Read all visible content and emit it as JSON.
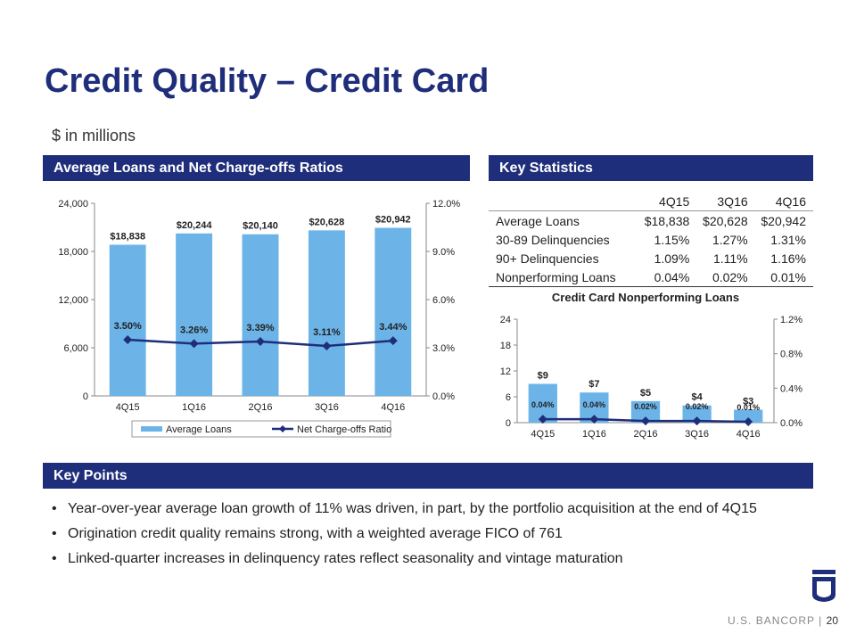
{
  "title": "Credit Quality – Credit Card",
  "subtitle": "$ in millions",
  "sections": {
    "left": "Average Loans and Net Charge-offs Ratios",
    "right": "Key Statistics",
    "points": "Key Points"
  },
  "stats": {
    "headers": [
      "4Q15",
      "3Q16",
      "4Q16"
    ],
    "rows": [
      {
        "label": "Average Loans",
        "values": [
          "$18,838",
          "$20,628",
          "$20,942"
        ]
      },
      {
        "label": "30-89 Delinquencies",
        "values": [
          "1.15%",
          "1.27%",
          "1.31%"
        ]
      },
      {
        "label": "90+ Delinquencies",
        "values": [
          "1.09%",
          "1.11%",
          "1.16%"
        ]
      },
      {
        "label": "Nonperforming Loans",
        "values": [
          "0.04%",
          "0.02%",
          "0.01%"
        ]
      }
    ]
  },
  "key_points": [
    "Year-over-year average loan growth of 11% was driven, in part, by the portfolio acquisition at the end of 4Q15",
    "Origination credit quality remains strong, with a weighted average FICO of 761",
    "Linked-quarter increases in delinquency rates reflect seasonality and vintage maturation"
  ],
  "footer": {
    "brand": "U.S. BANCORP",
    "separator": "|",
    "page": "20"
  },
  "colors": {
    "navy": "#1f2e7a",
    "bar": "#6cb4e8",
    "line": "#1f2e7a"
  },
  "chart_data": [
    {
      "type": "bar",
      "title": "",
      "categories": [
        "4Q15",
        "1Q16",
        "2Q16",
        "3Q16",
        "4Q16"
      ],
      "series": [
        {
          "name": "Average Loans",
          "kind": "bar",
          "axis": "left",
          "values": [
            18838,
            20244,
            20140,
            20628,
            20942
          ],
          "labels": [
            "$18,838",
            "$20,244",
            "$20,140",
            "$20,628",
            "$20,942"
          ]
        },
        {
          "name": "Net Charge-offs Ratio",
          "kind": "line",
          "axis": "right",
          "values": [
            3.5,
            3.26,
            3.39,
            3.11,
            3.44
          ],
          "labels": [
            "3.50%",
            "3.26%",
            "3.39%",
            "3.11%",
            "3.44%"
          ]
        }
      ],
      "left_axis": {
        "min": 0,
        "max": 24000,
        "ticks": [
          "0",
          "6,000",
          "12,000",
          "18,000",
          "24,000"
        ]
      },
      "right_axis": {
        "min": 0,
        "max": 12,
        "ticks": [
          "0.0%",
          "3.0%",
          "6.0%",
          "9.0%",
          "12.0%"
        ]
      },
      "legend": [
        "Average Loans",
        "Net Charge-offs Ratio"
      ],
      "legend_position": "bottom"
    },
    {
      "type": "bar",
      "title": "Credit Card Nonperforming Loans",
      "categories": [
        "4Q15",
        "1Q16",
        "2Q16",
        "3Q16",
        "4Q16"
      ],
      "series": [
        {
          "name": "Nonperforming Loans",
          "kind": "bar",
          "axis": "left",
          "values": [
            9,
            7,
            5,
            4,
            3
          ],
          "labels": [
            "$9",
            "$7",
            "$5",
            "$4",
            "$3"
          ]
        },
        {
          "name": "Nonperforming Loans Ratio",
          "kind": "line",
          "axis": "right",
          "values": [
            0.04,
            0.04,
            0.02,
            0.02,
            0.01
          ],
          "labels": [
            "0.04%",
            "0.04%",
            "0.02%",
            "0.02%",
            "0.01%"
          ]
        }
      ],
      "left_axis": {
        "min": 0,
        "max": 24,
        "ticks": [
          "0",
          "6",
          "12",
          "18",
          "24"
        ]
      },
      "right_axis": {
        "min": 0,
        "max": 1.2,
        "ticks": [
          "0.0%",
          "0.4%",
          "0.8%",
          "1.2%"
        ]
      },
      "legend": [],
      "legend_position": "none"
    }
  ]
}
